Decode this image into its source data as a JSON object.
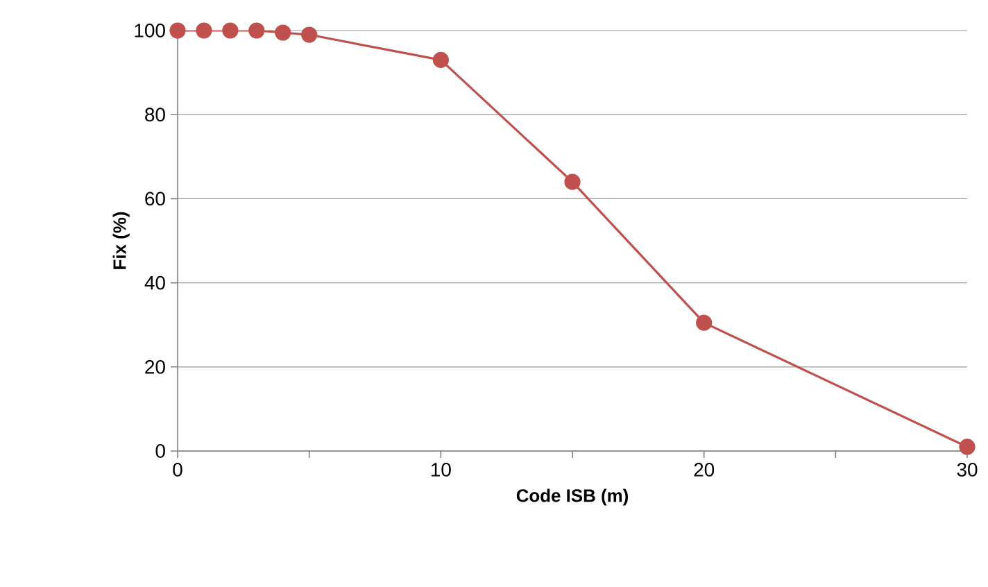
{
  "chart_data": {
    "type": "line",
    "xlabel": "Code ISB (m)",
    "ylabel": "Fix (%)",
    "x": [
      0,
      1,
      2,
      3,
      4,
      5,
      10,
      15,
      20,
      30
    ],
    "series": [
      {
        "color": "#c0504d",
        "values": [
          100,
          100,
          100,
          100,
          99.5,
          99,
          93,
          64,
          30.5,
          1
        ]
      }
    ],
    "xlim": [
      0,
      30
    ],
    "ylim": [
      0,
      100
    ],
    "xticks": [
      0,
      {
        "value": 5,
        "label": null
      },
      10,
      {
        "value": 15,
        "label": null
      },
      20,
      {
        "value": 25,
        "label": null
      },
      30
    ],
    "yticks": [
      0,
      20,
      40,
      60,
      80,
      100
    ],
    "grid": "y",
    "marker": "circle",
    "line_style": "solid"
  }
}
